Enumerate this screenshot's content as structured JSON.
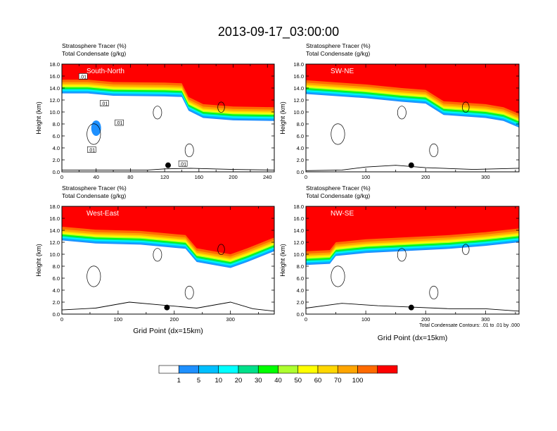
{
  "title": "2013-09-17_03:00:00",
  "chart_data": {
    "type": "heatmap",
    "title": "2013-09-17_03:00:00",
    "variables": [
      {
        "name": "Stratosphere Tracer",
        "units": "(%)"
      },
      {
        "name": "Total Condensate",
        "units": "(g/kg)"
      }
    ],
    "ylabel": "Height (km)",
    "xlabel": "Grid Point (dx=15km)",
    "ylim": [
      0,
      18
    ],
    "yticks": [
      "0.0",
      "2.0",
      "4.0",
      "6.0",
      "8.0",
      "10.0",
      "12.0",
      "14.0",
      "16.0",
      "18.0"
    ],
    "contour_note": "Total Condensate Contours: .01 to .01 by .000",
    "colorbar": {
      "levels": [
        "1",
        "5",
        "10",
        "20",
        "30",
        "40",
        "50",
        "60",
        "70",
        "100"
      ],
      "colors": [
        "#ffffff",
        "#1e90ff",
        "#00bfff",
        "#00ffff",
        "#00e08a",
        "#00ff00",
        "#adff2f",
        "#ffff00",
        "#ffd700",
        "#ffa500",
        "#ff6a00",
        "#ff0000"
      ]
    },
    "panels": [
      {
        "label": "South-North",
        "xmax": 248,
        "xticks": [
          0,
          20,
          40,
          60,
          80,
          100,
          120,
          140,
          160,
          180,
          200,
          220,
          240
        ],
        "xtick_labels": [
          "0",
          "",
          "40",
          "",
          "80",
          "",
          "120",
          "",
          "160",
          "",
          "200",
          "",
          "240"
        ],
        "tropopause_km": [
          [
            0,
            15.4
          ],
          [
            30,
            15.4
          ],
          [
            60,
            15.0
          ],
          [
            120,
            14.9
          ],
          [
            140,
            14.8
          ],
          [
            148,
            12.5
          ],
          [
            165,
            11.3
          ],
          [
            200,
            10.9
          ],
          [
            248,
            10.8
          ]
        ],
        "blue_blob": {
          "x": 40,
          "y_km": 7.3
        },
        "contour_labels": [
          ".01",
          ".01",
          ".01",
          ".01",
          ".01"
        ],
        "marker": {
          "x": 124,
          "y_km": 1.1
        },
        "terrain_km": [
          [
            0,
            0.3
          ],
          [
            100,
            0.3
          ],
          [
            120,
            0.5
          ],
          [
            150,
            0.6
          ],
          [
            200,
            0.4
          ],
          [
            248,
            0.3
          ]
        ]
      },
      {
        "label": "SW-NE",
        "xmax": 356,
        "xticks": [
          0,
          50,
          100,
          150,
          200,
          250,
          300,
          350
        ],
        "xtick_labels": [
          "0",
          "",
          "100",
          "",
          "200",
          "",
          "300",
          ""
        ],
        "tropopause_km": [
          [
            0,
            15.3
          ],
          [
            100,
            14.6
          ],
          [
            160,
            14.0
          ],
          [
            200,
            13.7
          ],
          [
            230,
            11.8
          ],
          [
            300,
            11.3
          ],
          [
            330,
            10.8
          ],
          [
            356,
            9.7
          ]
        ],
        "contour_labels": [],
        "marker": {
          "x": 176,
          "y_km": 1.1
        },
        "terrain_km": [
          [
            0,
            0.2
          ],
          [
            60,
            0.3
          ],
          [
            100,
            0.8
          ],
          [
            150,
            1.1
          ],
          [
            200,
            0.7
          ],
          [
            280,
            0.4
          ],
          [
            356,
            0.6
          ]
        ]
      },
      {
        "label": "West-East",
        "xmax": 378,
        "xticks": [
          0,
          50,
          100,
          150,
          200,
          250,
          300,
          350
        ],
        "xtick_labels": [
          "0",
          "",
          "100",
          "",
          "200",
          "",
          "300",
          ""
        ],
        "tropopause_km": [
          [
            0,
            14.6
          ],
          [
            60,
            14.1
          ],
          [
            140,
            13.9
          ],
          [
            220,
            13.2
          ],
          [
            240,
            11.0
          ],
          [
            300,
            10.0
          ],
          [
            330,
            11.0
          ],
          [
            378,
            12.8
          ]
        ],
        "contour_labels": [],
        "marker": {
          "x": 187,
          "y_km": 1.1
        },
        "terrain_km": [
          [
            0,
            0.7
          ],
          [
            60,
            1.0
          ],
          [
            120,
            2.0
          ],
          [
            180,
            1.5
          ],
          [
            240,
            1.0
          ],
          [
            300,
            2.0
          ],
          [
            340,
            0.9
          ],
          [
            378,
            0.5
          ]
        ]
      },
      {
        "label": "NW-SE",
        "xmax": 356,
        "xticks": [
          0,
          50,
          100,
          150,
          200,
          250,
          300,
          350
        ],
        "xtick_labels": [
          "0",
          "",
          "100",
          "",
          "200",
          "",
          "300",
          ""
        ],
        "tropopause_km": [
          [
            0,
            10.5
          ],
          [
            40,
            10.7
          ],
          [
            50,
            12.0
          ],
          [
            100,
            12.5
          ],
          [
            180,
            12.9
          ],
          [
            240,
            13.2
          ],
          [
            300,
            13.7
          ],
          [
            356,
            14.3
          ]
        ],
        "contour_labels": [],
        "marker": {
          "x": 176,
          "y_km": 1.1
        },
        "terrain_km": [
          [
            0,
            1.0
          ],
          [
            60,
            1.8
          ],
          [
            120,
            1.4
          ],
          [
            170,
            1.2
          ],
          [
            240,
            0.9
          ],
          [
            300,
            0.9
          ],
          [
            356,
            0.5
          ]
        ]
      }
    ]
  }
}
